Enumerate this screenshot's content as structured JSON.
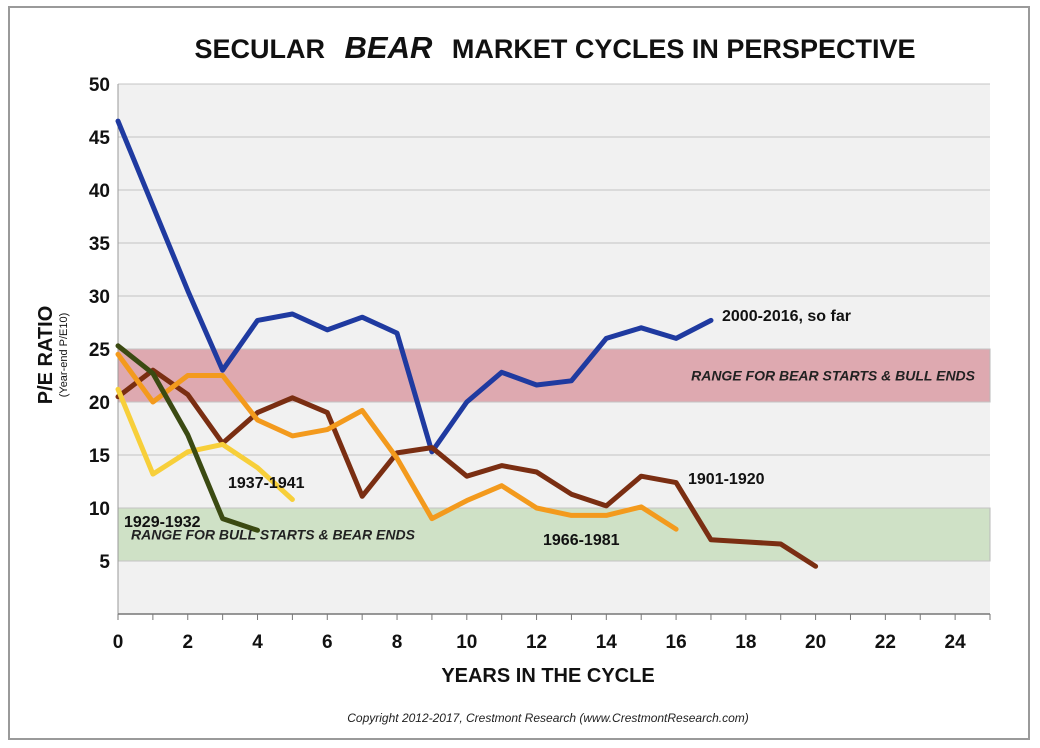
{
  "chart_data": {
    "type": "line",
    "title_prefix": "SECULAR",
    "title_emphasis": "BEAR",
    "title_suffix": "MARKET CYCLES IN PERSPECTIVE",
    "xlabel": "YEARS IN THE CYCLE",
    "ylabel": "P/E RATIO",
    "ylabel_sub": "(Year-end P/E10)",
    "xlim": [
      0,
      25
    ],
    "ylim": [
      0,
      50
    ],
    "x_ticks": [
      0,
      2,
      4,
      6,
      8,
      10,
      12,
      14,
      16,
      18,
      20,
      22,
      24
    ],
    "y_ticks": [
      5,
      10,
      15,
      20,
      25,
      30,
      35,
      40,
      45,
      50
    ],
    "bands": [
      {
        "label": "RANGE FOR BEAR STARTS & BULL ENDS",
        "y_range": [
          20,
          25
        ],
        "color": "#dea9b0"
      },
      {
        "label": "RANGE FOR BULL STARTS & BEAR ENDS",
        "y_range": [
          5,
          10
        ],
        "color": "#cfe1c6"
      }
    ],
    "series": [
      {
        "name": "2000-2016, so far",
        "color": "#1f3aa0",
        "x": [
          0,
          1,
          2,
          3,
          4,
          5,
          6,
          7,
          8,
          9,
          10,
          11,
          12,
          13,
          14,
          15,
          16,
          17
        ],
        "values": [
          46.5,
          38.5,
          30.5,
          23,
          27.7,
          28.3,
          26.8,
          28,
          26.5,
          15.3,
          20,
          22.8,
          21.6,
          22,
          26,
          27,
          26,
          27.7
        ]
      },
      {
        "name": "1901-1920",
        "color": "#7a2e12",
        "x": [
          0,
          1,
          2,
          3,
          4,
          5,
          6,
          7,
          8,
          9,
          10,
          11,
          12,
          13,
          14,
          15,
          16,
          17,
          18,
          19,
          20
        ],
        "values": [
          20.5,
          23,
          20.7,
          16.1,
          19,
          20.4,
          19,
          11.1,
          15.2,
          15.7,
          13,
          14,
          13.4,
          11.3,
          10.2,
          13,
          12.4,
          7,
          6.8,
          6.6,
          4.5
        ]
      },
      {
        "name": "1966-1981",
        "color": "#f39a1d",
        "x": [
          0,
          1,
          2,
          3,
          4,
          5,
          6,
          7,
          8,
          9,
          10,
          11,
          12,
          13,
          14,
          15,
          16
        ],
        "values": [
          24.5,
          20,
          22.5,
          22.5,
          18.3,
          16.8,
          17.4,
          19.2,
          14.7,
          9,
          10.7,
          12.1,
          10,
          9.3,
          9.3,
          10.1,
          8
        ]
      },
      {
        "name": "1937-1941",
        "color": "#f7cf3a",
        "x": [
          0,
          1,
          2,
          3,
          4,
          5
        ],
        "values": [
          21.2,
          13.2,
          15.3,
          16,
          13.8,
          10.8
        ]
      },
      {
        "name": "1929-1932",
        "color": "#3b4a12",
        "x": [
          0,
          1,
          2,
          3,
          4
        ],
        "values": [
          25.3,
          22.7,
          16.9,
          9,
          7.9
        ]
      }
    ]
  },
  "copyright": "Copyright 2012-2017, Crestmont Research (www.CrestmontResearch.com)"
}
